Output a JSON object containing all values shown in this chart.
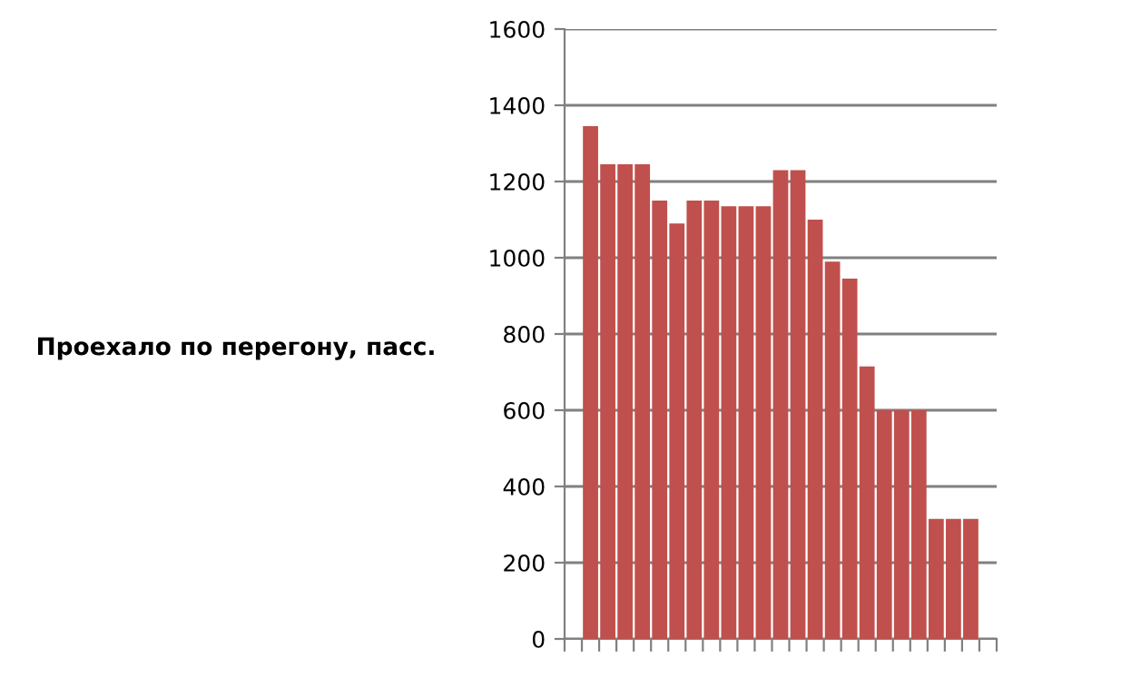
{
  "chart_data": {
    "type": "bar",
    "ylabel": "Проехало по перегону, пасс.",
    "categories": [
      null,
      null,
      null,
      null,
      null,
      null,
      null,
      null,
      null,
      null,
      null,
      null,
      null,
      null,
      null,
      null,
      null,
      null,
      null,
      null,
      null,
      null,
      null,
      null,
      null
    ],
    "values": [
      null,
      1345,
      1245,
      1245,
      1245,
      1150,
      1090,
      1150,
      1150,
      1135,
      1135,
      1135,
      1230,
      1230,
      1100,
      990,
      945,
      715,
      600,
      600,
      600,
      315,
      315,
      315,
      null
    ],
    "color": "#c0504d",
    "ylim": [
      0,
      1600
    ],
    "yticks": [
      0,
      200,
      400,
      600,
      800,
      1000,
      1200,
      1400,
      1600
    ],
    "grid": "y",
    "legend": false
  }
}
